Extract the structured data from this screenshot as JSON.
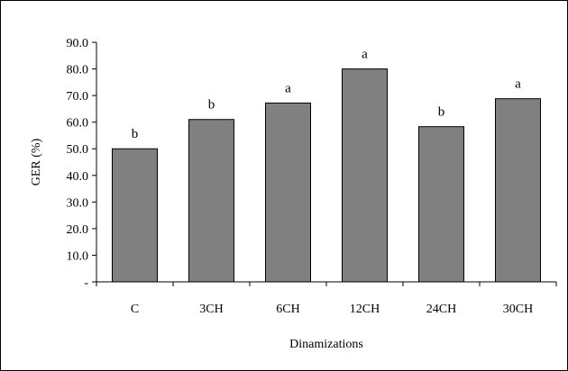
{
  "chart_data": {
    "type": "bar",
    "categories": [
      "C",
      "3CH",
      "6CH",
      "12CH",
      "24CH",
      "30CH"
    ],
    "values": [
      50.0,
      61.0,
      67.2,
      80.0,
      58.3,
      68.8
    ],
    "data_labels": [
      "b",
      "b",
      "a",
      "a",
      "b",
      "a"
    ],
    "ylabel": "GER (%)",
    "xlabel": "Dinamizations",
    "ylim": [
      0,
      90
    ],
    "yticks": [
      {
        "value": 0,
        "label": "-"
      },
      {
        "value": 10,
        "label": "10.0"
      },
      {
        "value": 20,
        "label": "20.0"
      },
      {
        "value": 30,
        "label": "30.0"
      },
      {
        "value": 40,
        "label": "40.0"
      },
      {
        "value": 50,
        "label": "50.0"
      },
      {
        "value": 60,
        "label": "60.0"
      },
      {
        "value": 70,
        "label": "70.0"
      },
      {
        "value": 80,
        "label": "80.0"
      },
      {
        "value": 90,
        "label": "90.0"
      }
    ],
    "grid": false,
    "bar_color": "#808080",
    "bar_edge_color": "#000000"
  }
}
